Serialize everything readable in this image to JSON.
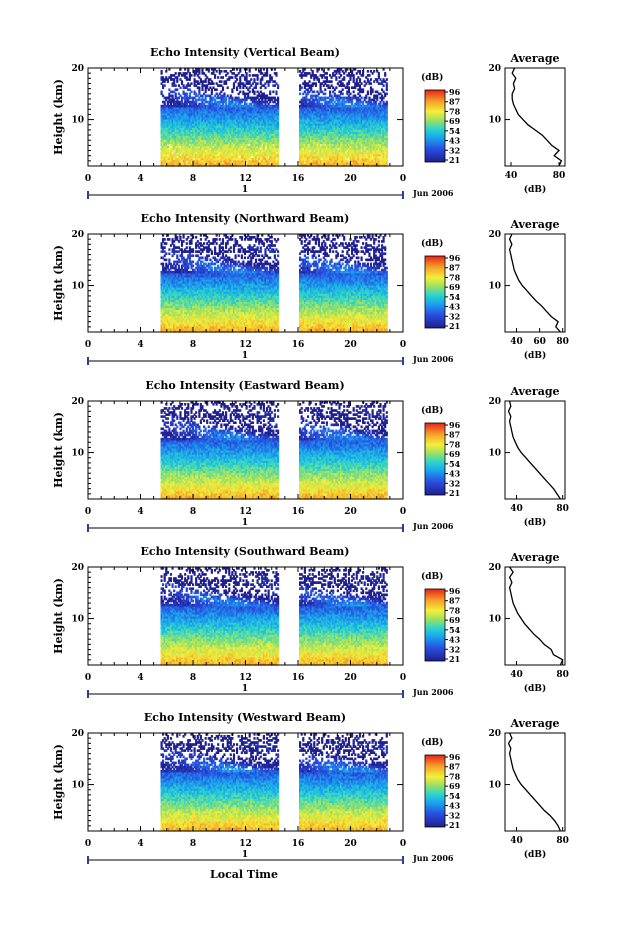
{
  "figure": {
    "xlabel": "Local Time",
    "date_label": "Jun 2006",
    "day_label": "1",
    "colorbar_unit": "(dB)",
    "average_title": "Average",
    "average_xlabel": "(dB)"
  },
  "chart_data": [
    {
      "type": "heatmap",
      "title": "Echo Intensity (Vertical Beam)",
      "ylabel": "Height (km)",
      "x_ticks": [
        "0",
        "4",
        "8",
        "12",
        "16",
        "20",
        "0"
      ],
      "y_ticks": [
        "20",
        "10"
      ],
      "xlim": [
        0,
        24
      ],
      "ylim": [
        1,
        20
      ],
      "data_gaps_hours": [
        [
          0,
          5.5
        ],
        [
          14.5,
          16
        ]
      ],
      "colorbar_ticks": [
        "96",
        "87",
        "78",
        "69",
        "54",
        "43",
        "32",
        "21"
      ],
      "average_profile": {
        "x_ticks": [
          "40",
          "80"
        ],
        "xlim": [
          35,
          85
        ],
        "y_ticks": [
          "20",
          "10"
        ],
        "height_km": [
          1,
          2,
          3,
          4,
          5,
          6,
          7,
          8,
          9,
          10,
          11,
          12,
          13,
          14,
          15,
          16,
          17,
          18,
          19,
          20
        ],
        "intensity_db": [
          80,
          82,
          76,
          80,
          74,
          70,
          66,
          60,
          54,
          50,
          46,
          44,
          42,
          41,
          41,
          43,
          42,
          44,
          41,
          43
        ]
      }
    },
    {
      "type": "heatmap",
      "title": "Echo Intensity (Northward Beam)",
      "ylabel": "Height (km)",
      "x_ticks": [
        "0",
        "4",
        "8",
        "12",
        "16",
        "20",
        "0"
      ],
      "y_ticks": [
        "20",
        "10"
      ],
      "xlim": [
        0,
        24
      ],
      "ylim": [
        1,
        20
      ],
      "data_gaps_hours": [
        [
          0,
          5.5
        ],
        [
          14.5,
          16
        ]
      ],
      "colorbar_ticks": [
        "96",
        "87",
        "78",
        "69",
        "54",
        "43",
        "32",
        "21"
      ],
      "average_profile": {
        "x_ticks": [
          "40",
          "60",
          "80"
        ],
        "xlim": [
          30,
          82
        ],
        "y_ticks": [
          "20",
          "10"
        ],
        "height_km": [
          1,
          2,
          3,
          4,
          5,
          6,
          7,
          8,
          9,
          10,
          11,
          12,
          13,
          14,
          15,
          16,
          17,
          18,
          19,
          20
        ],
        "intensity_db": [
          78,
          74,
          76,
          70,
          66,
          62,
          57,
          53,
          49,
          45,
          42,
          40,
          38,
          37,
          36,
          35,
          34,
          36,
          34,
          36
        ]
      }
    },
    {
      "type": "heatmap",
      "title": "Echo Intensity (Eastward Beam)",
      "ylabel": "Height (km)",
      "x_ticks": [
        "0",
        "4",
        "8",
        "12",
        "16",
        "20",
        "0"
      ],
      "y_ticks": [
        "20",
        "10"
      ],
      "xlim": [
        0,
        24
      ],
      "ylim": [
        1,
        20
      ],
      "data_gaps_hours": [
        [
          0,
          5.5
        ],
        [
          14.5,
          16
        ]
      ],
      "colorbar_ticks": [
        "96",
        "87",
        "78",
        "69",
        "54",
        "43",
        "32",
        "21"
      ],
      "average_profile": {
        "x_ticks": [
          "40",
          "80"
        ],
        "xlim": [
          30,
          82
        ],
        "y_ticks": [
          "20",
          "10"
        ],
        "height_km": [
          1,
          2,
          3,
          4,
          5,
          6,
          7,
          8,
          9,
          10,
          11,
          12,
          13,
          14,
          15,
          16,
          17,
          18,
          19,
          20
        ],
        "intensity_db": [
          78,
          75,
          72,
          68,
          64,
          60,
          56,
          52,
          48,
          44,
          41,
          39,
          37,
          36,
          35,
          34,
          35,
          33,
          35,
          34
        ]
      }
    },
    {
      "type": "heatmap",
      "title": "Echo Intensity (Southward Beam)",
      "ylabel": "Height (km)",
      "x_ticks": [
        "0",
        "4",
        "8",
        "12",
        "16",
        "20",
        "0"
      ],
      "y_ticks": [
        "20",
        "10"
      ],
      "xlim": [
        0,
        24
      ],
      "ylim": [
        1,
        20
      ],
      "data_gaps_hours": [
        [
          0,
          5.5
        ],
        [
          14.5,
          16
        ]
      ],
      "colorbar_ticks": [
        "96",
        "87",
        "78",
        "69",
        "54",
        "43",
        "32",
        "21"
      ],
      "average_profile": {
        "x_ticks": [
          "40",
          "80"
        ],
        "xlim": [
          30,
          82
        ],
        "y_ticks": [
          "20",
          "10"
        ],
        "height_km": [
          1,
          2,
          3,
          4,
          5,
          6,
          7,
          8,
          9,
          10,
          11,
          12,
          13,
          14,
          15,
          16,
          17,
          18,
          19,
          20
        ],
        "intensity_db": [
          78,
          80,
          72,
          70,
          64,
          60,
          55,
          51,
          47,
          44,
          41,
          39,
          37,
          36,
          35,
          34,
          36,
          34,
          37,
          34
        ]
      }
    },
    {
      "type": "heatmap",
      "title": "Echo Intensity (Westward Beam)",
      "ylabel": "Height (km)",
      "x_ticks": [
        "0",
        "4",
        "8",
        "12",
        "16",
        "20",
        "0"
      ],
      "y_ticks": [
        "20",
        "10"
      ],
      "xlim": [
        0,
        24
      ],
      "ylim": [
        1,
        20
      ],
      "data_gaps_hours": [
        [
          0,
          5.5
        ],
        [
          14.5,
          16
        ]
      ],
      "colorbar_ticks": [
        "96",
        "87",
        "78",
        "69",
        "54",
        "43",
        "32",
        "21"
      ],
      "average_profile": {
        "x_ticks": [
          "40",
          "80"
        ],
        "xlim": [
          30,
          82
        ],
        "y_ticks": [
          "20",
          "10"
        ],
        "height_km": [
          1,
          2,
          3,
          4,
          5,
          6,
          7,
          8,
          9,
          10,
          11,
          12,
          13,
          14,
          15,
          16,
          17,
          18,
          19,
          20
        ],
        "intensity_db": [
          78,
          76,
          73,
          69,
          64,
          60,
          56,
          52,
          48,
          44,
          41,
          39,
          37,
          36,
          35,
          34,
          35,
          33,
          36,
          34
        ]
      }
    }
  ]
}
